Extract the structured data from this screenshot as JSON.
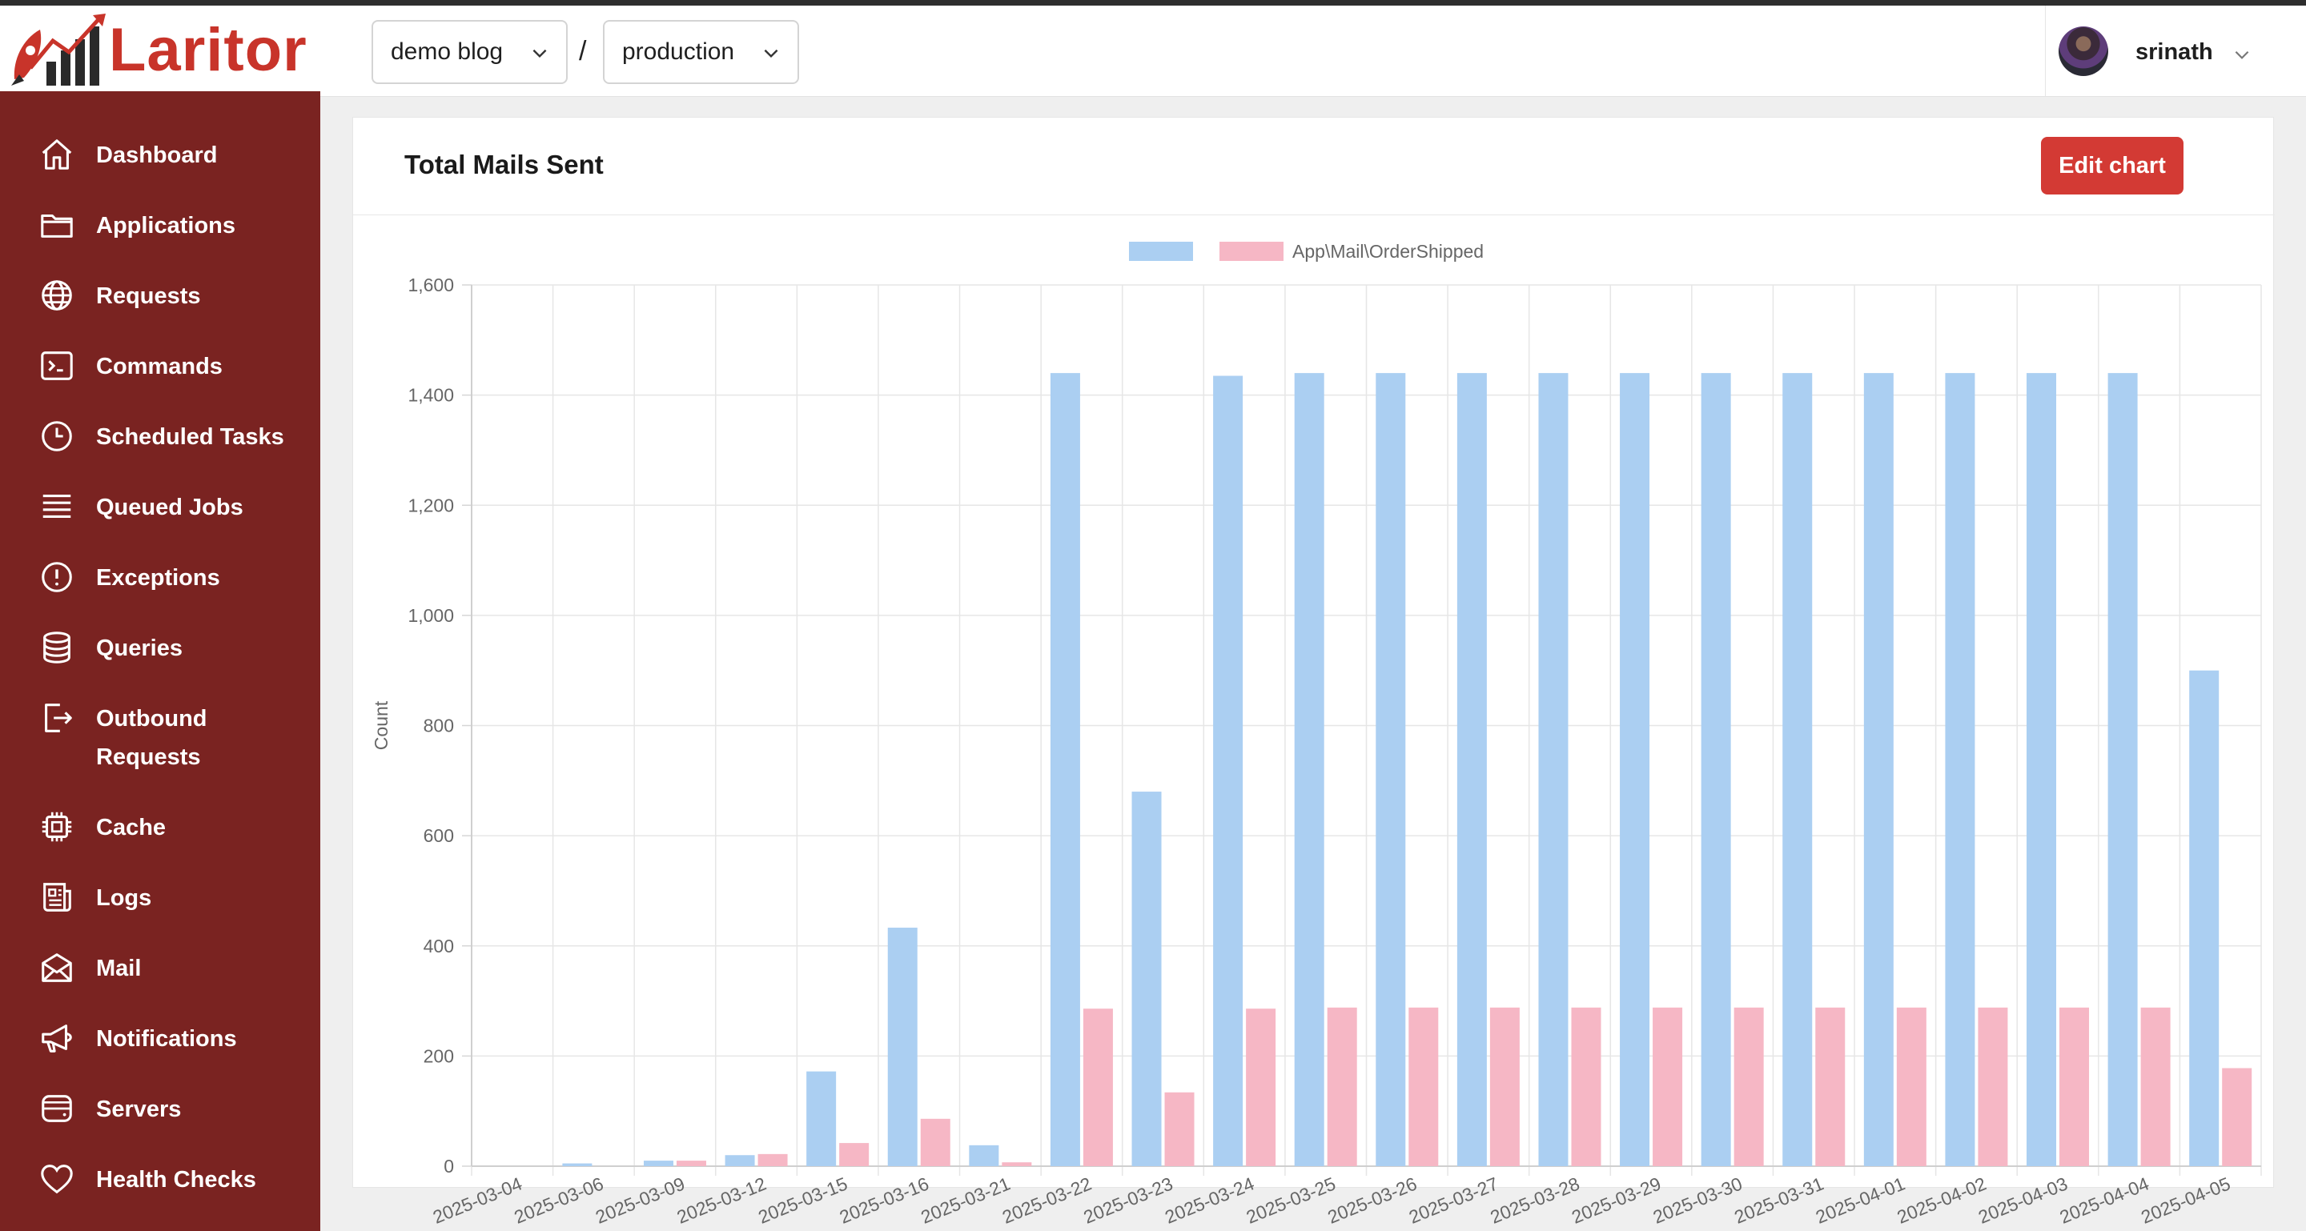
{
  "app": {
    "name": "Laritor"
  },
  "project": {
    "selected": "demo blog"
  },
  "separator": "/",
  "environment": {
    "selected": "production"
  },
  "user": {
    "name": "srinath"
  },
  "sidebar": {
    "items": [
      {
        "label": "Dashboard",
        "icon": "home-icon"
      },
      {
        "label": "Applications",
        "icon": "folder-icon"
      },
      {
        "label": "Requests",
        "icon": "globe-icon"
      },
      {
        "label": "Commands",
        "icon": "terminal-icon"
      },
      {
        "label": "Scheduled Tasks",
        "icon": "clock-icon"
      },
      {
        "label": "Queued Jobs",
        "icon": "list-icon"
      },
      {
        "label": "Exceptions",
        "icon": "alert-circle-icon"
      },
      {
        "label": "Queries",
        "icon": "database-icon"
      },
      {
        "label": "Outbound",
        "label2": "Requests",
        "icon": "external-link-icon"
      },
      {
        "label": "Cache",
        "icon": "chip-icon"
      },
      {
        "label": "Logs",
        "icon": "newspaper-icon"
      },
      {
        "label": "Mail",
        "icon": "envelope-icon"
      },
      {
        "label": "Notifications",
        "icon": "megaphone-icon"
      },
      {
        "label": "Servers",
        "icon": "server-icon"
      },
      {
        "label": "Health Checks",
        "icon": "heart-icon"
      }
    ]
  },
  "card": {
    "title": "Total Mails Sent",
    "edit_label": "Edit chart"
  },
  "colors": {
    "sidebar": "#7a2321",
    "brand": "#c8342a",
    "button": "#d33a34",
    "series_a": "#abcff2",
    "series_b": "#f6b7c5"
  },
  "chart_data": {
    "type": "bar",
    "categories": [
      "2025-03-04",
      "2025-03-06",
      "2025-03-09",
      "2025-03-12",
      "2025-03-15",
      "2025-03-16",
      "2025-03-21",
      "2025-03-22",
      "2025-03-23",
      "2025-03-24",
      "2025-03-25",
      "2025-03-26",
      "2025-03-27",
      "2025-03-28",
      "2025-03-29",
      "2025-03-30",
      "2025-03-31",
      "2025-04-01",
      "2025-04-02",
      "2025-04-03",
      "2025-04-04",
      "2025-04-05"
    ],
    "series": [
      {
        "name": "",
        "color": "#abcff2",
        "values": [
          0,
          5,
          10,
          20,
          172,
          433,
          38,
          1440,
          680,
          1435,
          1440,
          1440,
          1440,
          1440,
          1440,
          1440,
          1440,
          1440,
          1440,
          1440,
          1440,
          900
        ]
      },
      {
        "name": "App\\Mail\\OrderShipped",
        "color": "#f6b7c5",
        "values": [
          0,
          0,
          10,
          22,
          42,
          86,
          7,
          286,
          134,
          286,
          288,
          288,
          288,
          288,
          288,
          288,
          288,
          288,
          288,
          288,
          288,
          178
        ]
      }
    ],
    "ylabel": "Count",
    "xlabel": "",
    "ylim": [
      0,
      1600
    ],
    "yticks": [
      0,
      200,
      400,
      600,
      800,
      1000,
      1200,
      1400,
      1600
    ],
    "yticklabels": [
      "0",
      "200",
      "400",
      "600",
      "800",
      "1,000",
      "1,200",
      "1,400",
      "1,600"
    ],
    "grid": true,
    "legend": "top-center"
  }
}
